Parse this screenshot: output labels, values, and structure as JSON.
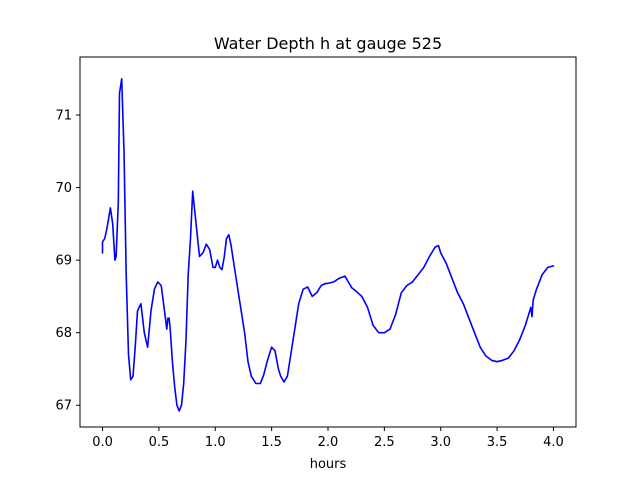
{
  "chart_data": {
    "type": "line",
    "title": "Water Depth h at gauge 525",
    "xlabel": "hours",
    "ylabel": "",
    "xlim": [
      -0.2,
      4.2
    ],
    "ylim": [
      66.7,
      71.8
    ],
    "x_ticks": [
      0.0,
      0.5,
      1.0,
      1.5,
      2.0,
      2.5,
      3.0,
      3.5,
      4.0
    ],
    "x_tick_labels": [
      "0.0",
      "0.5",
      "1.0",
      "1.5",
      "2.0",
      "2.5",
      "3.0",
      "3.5",
      "4.0"
    ],
    "y_ticks": [
      67,
      68,
      69,
      70,
      71
    ],
    "y_tick_labels": [
      "67",
      "68",
      "69",
      "70",
      "71"
    ],
    "grid": false,
    "series": [
      {
        "color": "#0000ff",
        "x": [
          0.0,
          0.0,
          0.02,
          0.04,
          0.07,
          0.09,
          0.11,
          0.12,
          0.14,
          0.15,
          0.17,
          0.19,
          0.21,
          0.23,
          0.25,
          0.27,
          0.29,
          0.31,
          0.34,
          0.37,
          0.4,
          0.43,
          0.46,
          0.49,
          0.52,
          0.55,
          0.57,
          0.58,
          0.59,
          0.6,
          0.62,
          0.64,
          0.66,
          0.68,
          0.7,
          0.72,
          0.74,
          0.76,
          0.78,
          0.8,
          0.83,
          0.86,
          0.89,
          0.92,
          0.95,
          0.98,
          1.0,
          1.02,
          1.04,
          1.06,
          1.08,
          1.1,
          1.12,
          1.14,
          1.17,
          1.2,
          1.23,
          1.26,
          1.29,
          1.32,
          1.36,
          1.4,
          1.43,
          1.46,
          1.5,
          1.53,
          1.56,
          1.58,
          1.61,
          1.64,
          1.67,
          1.7,
          1.74,
          1.78,
          1.82,
          1.86,
          1.9,
          1.94,
          1.98,
          2.0,
          2.05,
          2.1,
          2.15,
          2.18,
          2.21,
          2.25,
          2.3,
          2.35,
          2.4,
          2.45,
          2.5,
          2.55,
          2.6,
          2.65,
          2.7,
          2.75,
          2.8,
          2.85,
          2.9,
          2.95,
          2.98,
          3.0,
          3.05,
          3.1,
          3.15,
          3.2,
          3.25,
          3.3,
          3.35,
          3.4,
          3.45,
          3.5,
          3.55,
          3.6,
          3.65,
          3.7,
          3.75,
          3.8,
          3.81,
          3.82,
          3.85,
          3.9,
          3.95,
          4.0
        ],
        "y": [
          69.1,
          69.25,
          69.3,
          69.45,
          69.72,
          69.5,
          69.0,
          69.05,
          69.8,
          71.3,
          71.5,
          70.5,
          68.8,
          67.7,
          67.35,
          67.4,
          67.8,
          68.3,
          68.4,
          68.0,
          67.8,
          68.3,
          68.6,
          68.7,
          68.65,
          68.3,
          68.05,
          68.2,
          68.2,
          68.05,
          67.6,
          67.25,
          67.0,
          66.92,
          67.0,
          67.3,
          67.9,
          68.8,
          69.3,
          69.95,
          69.5,
          69.05,
          69.1,
          69.22,
          69.15,
          68.9,
          68.9,
          69.0,
          68.9,
          68.87,
          69.05,
          69.3,
          69.35,
          69.2,
          68.9,
          68.6,
          68.3,
          68.0,
          67.6,
          67.4,
          67.3,
          67.3,
          67.42,
          67.6,
          67.8,
          67.75,
          67.5,
          67.4,
          67.32,
          67.4,
          67.7,
          68.0,
          68.4,
          68.6,
          68.63,
          68.5,
          68.55,
          68.65,
          68.68,
          68.68,
          68.7,
          68.75,
          68.78,
          68.7,
          68.62,
          68.57,
          68.5,
          68.35,
          68.1,
          68.0,
          68.0,
          68.05,
          68.25,
          68.55,
          68.65,
          68.7,
          68.8,
          68.9,
          69.05,
          69.18,
          69.2,
          69.1,
          68.95,
          68.75,
          68.55,
          68.4,
          68.2,
          68.0,
          67.8,
          67.68,
          67.62,
          67.6,
          67.62,
          67.65,
          67.75,
          67.9,
          68.1,
          68.35,
          68.22,
          68.45,
          68.6,
          68.8,
          68.9,
          68.92
        ]
      }
    ]
  }
}
